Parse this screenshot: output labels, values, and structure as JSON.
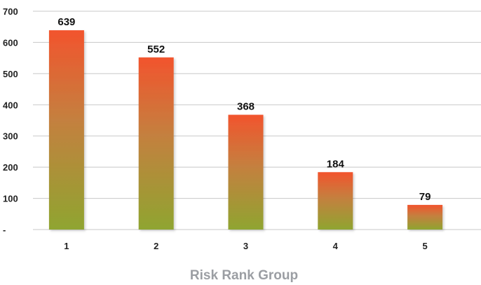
{
  "chart_data": {
    "type": "bar",
    "title": "",
    "xlabel": "Risk Rank Group",
    "ylabel": "",
    "categories": [
      "1",
      "2",
      "3",
      "4",
      "5"
    ],
    "values": [
      639,
      552,
      368,
      184,
      79
    ],
    "data_labels": [
      "639",
      "552",
      "368",
      "184",
      "79"
    ],
    "ylim": [
      0,
      700
    ],
    "y_ticks": [
      0,
      100,
      200,
      300,
      400,
      500,
      600,
      700
    ],
    "y_tick_labels": [
      "-",
      "100",
      "200",
      "300",
      "400",
      "500",
      "600",
      "700"
    ],
    "grid": true,
    "legend": "none",
    "colors": {
      "bar_top": "#f2542d",
      "bar_mid": "#c4803f",
      "bar_bottom": "#8fa530",
      "grid": "#c8c8c8",
      "axis_title": "#9b9ea3"
    }
  }
}
